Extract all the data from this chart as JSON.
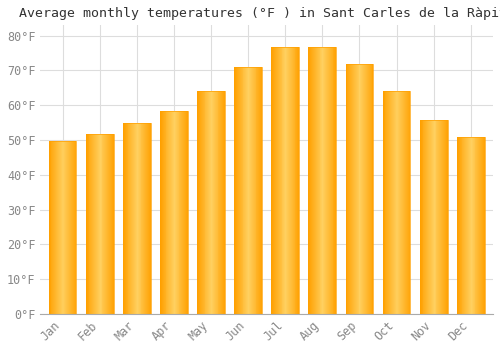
{
  "title": "Average monthly temperatures (°F ) in Sant Carles de la Ràpita",
  "months": [
    "Jan",
    "Feb",
    "Mar",
    "Apr",
    "May",
    "Jun",
    "Jul",
    "Aug",
    "Sep",
    "Oct",
    "Nov",
    "Dec"
  ],
  "values": [
    49.8,
    51.8,
    54.9,
    58.3,
    64.0,
    70.9,
    76.8,
    76.8,
    72.0,
    64.2,
    55.8,
    50.9
  ],
  "bar_color_light": "#FFD060",
  "bar_color_dark": "#FFA000",
  "background_color": "#FFFFFF",
  "plot_bg_color": "#FFFFFF",
  "grid_color": "#DDDDDD",
  "yticks": [
    0,
    10,
    20,
    30,
    40,
    50,
    60,
    70,
    80
  ],
  "ylim": [
    0,
    83
  ],
  "ylabel_suffix": "°F",
  "title_fontsize": 9.5,
  "tick_fontsize": 8.5,
  "font_family": "monospace",
  "tick_color": "#888888",
  "title_color": "#333333"
}
